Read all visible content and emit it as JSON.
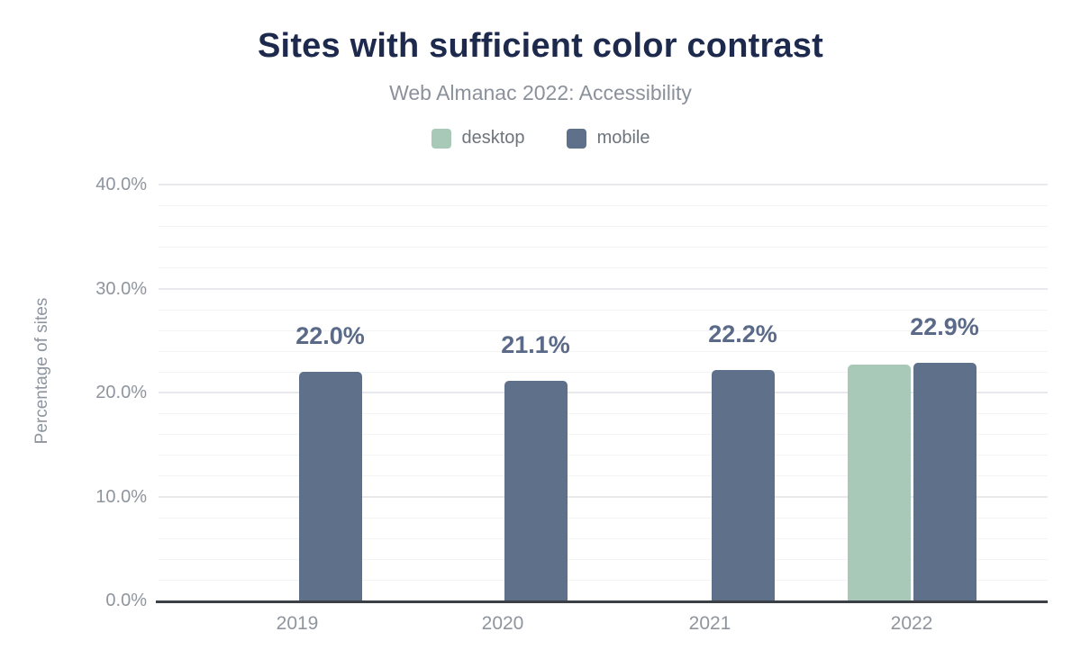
{
  "header": {
    "title": "Sites with sufficient color contrast",
    "subtitle": "Web Almanac 2022: Accessibility"
  },
  "legend": {
    "items": [
      {
        "label": "desktop",
        "color": "#a9c9b8"
      },
      {
        "label": "mobile",
        "color": "#5f708b"
      }
    ]
  },
  "chart_data": {
    "type": "bar",
    "title": "Sites with sufficient color contrast",
    "subtitle": "Web Almanac 2022: Accessibility",
    "categories": [
      "2019",
      "2020",
      "2021",
      "2022"
    ],
    "series": [
      {
        "name": "desktop",
        "color": "#a9c9b8",
        "values": [
          null,
          null,
          null,
          22.7
        ]
      },
      {
        "name": "mobile",
        "color": "#5f708b",
        "values": [
          22.0,
          21.1,
          22.2,
          22.9
        ]
      }
    ],
    "data_labels": [
      "22.0%",
      "21.1%",
      "22.2%",
      "22.9%"
    ],
    "xlabel": "",
    "ylabel": "Percentage of sites",
    "ylim": [
      0,
      40
    ],
    "yticks": [
      {
        "value": 0,
        "label": "0.0%"
      },
      {
        "value": 10,
        "label": "10.0%"
      },
      {
        "value": 20,
        "label": "20.0%"
      },
      {
        "value": 30,
        "label": "30.0%"
      },
      {
        "value": 40,
        "label": "40.0%"
      }
    ],
    "grid": {
      "major_step": 10,
      "minor_step": 2
    },
    "legend_position": "top"
  },
  "colors": {
    "title": "#1d2a4d",
    "subtitle": "#8b919b",
    "legend_text": "#6e747d",
    "axis_text": "#8f959e",
    "data_label": "#5a6a88",
    "axis_line": "#3b4046",
    "grid_major": "#e7e9ec",
    "grid_minor": "#f3f4f6"
  }
}
